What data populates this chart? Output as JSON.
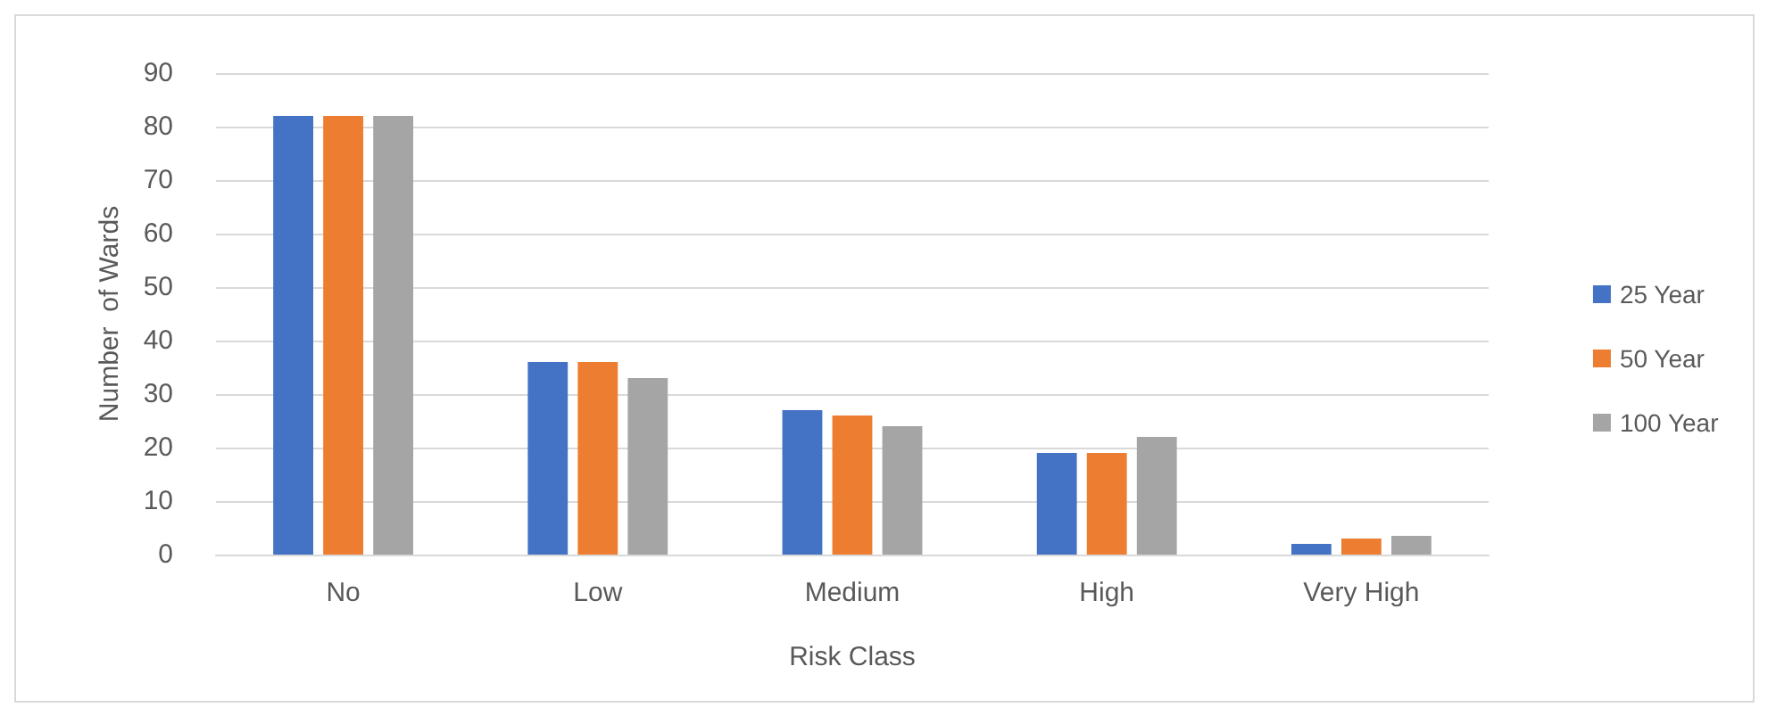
{
  "chart_data": {
    "type": "bar",
    "xlabel": "Risk Class",
    "ylabel": "Number  of Wards",
    "categories": [
      "No",
      "Low",
      "Medium",
      "High",
      "Very High"
    ],
    "series": [
      {
        "name": "25 Year",
        "color": "#4472c4",
        "values": [
          82,
          36,
          27,
          19,
          2
        ]
      },
      {
        "name": "50 Year",
        "color": "#ed7d31",
        "values": [
          82,
          36,
          26,
          19,
          3
        ]
      },
      {
        "name": "100 Year",
        "color": "#a5a5a5",
        "values": [
          82,
          33,
          24,
          22,
          3.5
        ]
      }
    ],
    "ylim": [
      0,
      90
    ],
    "yticks": [
      0,
      10,
      20,
      30,
      40,
      50,
      60,
      70,
      80,
      90
    ],
    "grid": "y",
    "legend": "right"
  }
}
